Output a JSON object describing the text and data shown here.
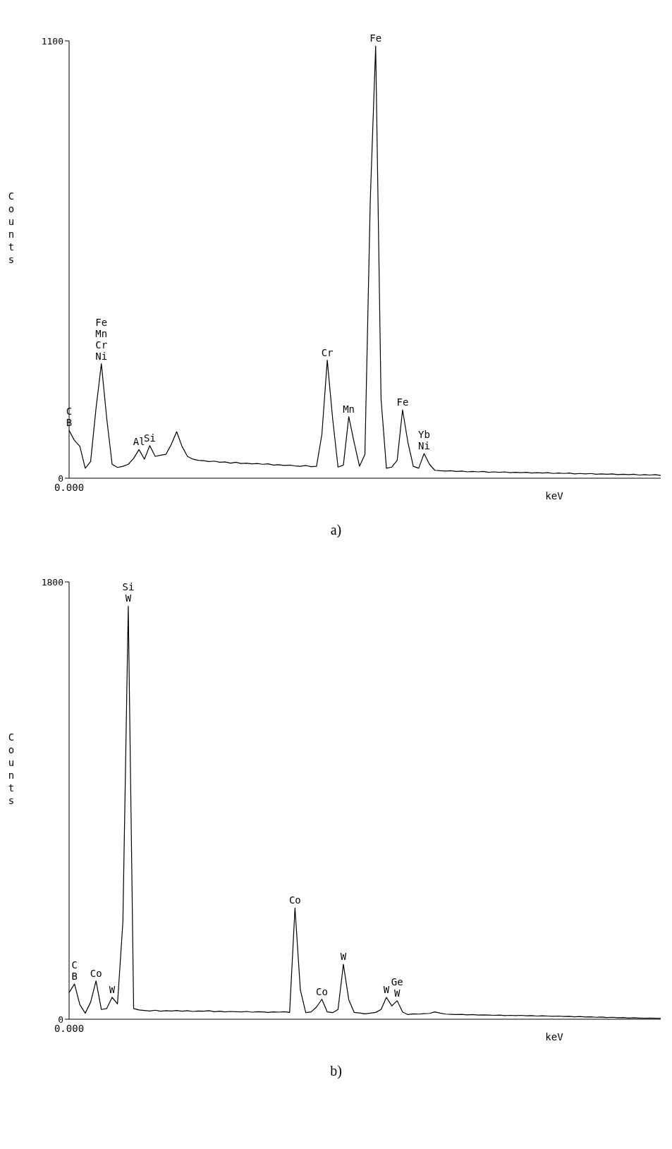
{
  "chart_data": [
    {
      "type": "line",
      "xlabel": "keV",
      "ylabel": "Counts",
      "annotations": [
        "a)"
      ],
      "color": "#000000",
      "ylim": [
        0,
        1100
      ],
      "yticks": [
        0,
        1100
      ],
      "categories": [
        "0.000",
        null,
        null,
        null,
        null,
        null,
        null,
        null,
        null,
        null,
        null,
        null,
        null,
        null,
        null,
        null,
        null,
        null,
        null,
        null,
        null,
        null,
        null,
        null,
        null,
        null,
        null,
        null,
        null,
        null,
        null,
        null,
        null,
        null,
        null,
        null,
        null,
        null,
        null,
        null,
        null,
        null,
        null,
        null,
        null,
        null,
        null,
        null,
        null,
        null,
        null,
        null,
        null,
        null,
        null,
        null,
        null,
        null,
        null,
        null,
        null,
        null,
        null,
        null,
        null,
        null,
        null,
        null,
        null,
        null,
        null,
        null,
        null,
        null,
        null,
        null,
        null,
        null,
        null,
        null,
        null,
        null,
        null,
        null,
        null,
        null,
        null,
        null,
        null,
        null,
        null,
        null,
        null,
        null,
        null,
        null,
        null,
        null,
        null,
        null,
        null,
        null,
        null,
        null,
        null,
        null,
        null,
        null,
        null,
        null,
        null
      ],
      "values": [
        120,
        95,
        80,
        25,
        42,
        175,
        288,
        150,
        35,
        27,
        30,
        35,
        50,
        72,
        48,
        82,
        55,
        58,
        60,
        85,
        117,
        80,
        55,
        48,
        45,
        44,
        42,
        43,
        40,
        41,
        38,
        40,
        37,
        38,
        36,
        37,
        35,
        36,
        33,
        34,
        32,
        33,
        31,
        30,
        32,
        29,
        30,
        110,
        297,
        150,
        28,
        33,
        155,
        90,
        30,
        60,
        700,
        1087,
        200,
        25,
        28,
        45,
        172,
        90,
        30,
        25,
        62,
        35,
        20,
        19,
        18,
        19,
        17,
        18,
        16,
        17,
        16,
        17,
        15,
        16,
        15,
        16,
        14,
        15,
        14,
        15,
        13,
        14,
        13,
        14,
        12,
        13,
        12,
        13,
        11,
        12,
        11,
        12,
        10,
        11,
        10,
        11,
        9,
        10,
        9,
        10,
        8,
        9,
        8,
        9,
        7
      ],
      "value_labels": [
        "C\nB",
        null,
        null,
        null,
        null,
        null,
        "Fe\nMn\nCr\nNi",
        null,
        null,
        null,
        null,
        null,
        null,
        "Al",
        null,
        "Si",
        null,
        null,
        null,
        null,
        null,
        null,
        null,
        null,
        null,
        null,
        null,
        null,
        null,
        null,
        null,
        null,
        null,
        null,
        null,
        null,
        null,
        null,
        null,
        null,
        null,
        null,
        null,
        null,
        null,
        null,
        null,
        null,
        "Cr",
        null,
        null,
        null,
        "Mn",
        null,
        null,
        null,
        null,
        "Fe",
        null,
        null,
        null,
        null,
        "Fe",
        null,
        null,
        null,
        "Yb\nNi",
        null,
        null,
        null,
        null,
        null,
        null,
        null,
        null,
        null,
        null,
        null,
        null,
        null,
        null,
        null,
        null,
        null,
        null,
        null,
        null,
        null,
        null,
        null,
        null,
        null,
        null,
        null,
        null,
        null,
        null,
        null,
        null,
        null,
        null,
        null,
        null,
        null,
        null,
        null,
        null,
        null,
        null,
        null,
        null
      ]
    },
    {
      "type": "line",
      "xlabel": "keV",
      "ylabel": "Counts",
      "annotations": [
        "b)"
      ],
      "color": "#000000",
      "ylim": [
        0,
        1800
      ],
      "yticks": [
        0,
        1800
      ],
      "categories": [
        "0.000",
        null,
        null,
        null,
        null,
        null,
        null,
        null,
        null,
        null,
        null,
        null,
        null,
        null,
        null,
        null,
        null,
        null,
        null,
        null,
        null,
        null,
        null,
        null,
        null,
        null,
        null,
        null,
        null,
        null,
        null,
        null,
        null,
        null,
        null,
        null,
        null,
        null,
        null,
        null,
        null,
        null,
        null,
        null,
        null,
        null,
        null,
        null,
        null,
        null,
        null,
        null,
        null,
        null,
        null,
        null,
        null,
        null,
        null,
        null,
        null,
        null,
        null,
        null,
        null,
        null,
        null,
        null,
        null,
        null,
        null,
        null,
        null,
        null,
        null,
        null,
        null,
        null,
        null,
        null,
        null,
        null,
        null,
        null,
        null,
        null,
        null,
        null,
        null,
        null,
        null,
        null,
        null,
        null,
        null,
        null,
        null,
        null,
        null,
        null,
        null,
        null,
        null,
        null,
        null,
        null,
        null,
        null,
        null,
        null,
        null
      ],
      "values": [
        110,
        145,
        60,
        25,
        70,
        158,
        40,
        44,
        90,
        63,
        400,
        1700,
        44,
        38,
        36,
        34,
        37,
        33,
        35,
        34,
        36,
        33,
        35,
        32,
        34,
        33,
        35,
        31,
        33,
        30,
        32,
        31,
        30,
        32,
        29,
        31,
        30,
        28,
        30,
        29,
        31,
        28,
        458,
        120,
        27,
        30,
        50,
        82,
        30,
        27,
        40,
        226,
        80,
        28,
        26,
        22,
        25,
        28,
        40,
        90,
        55,
        76,
        30,
        19,
        22,
        21,
        23,
        24,
        30,
        25,
        21,
        20,
        19,
        20,
        18,
        19,
        17,
        18,
        17,
        16,
        17,
        15,
        16,
        15,
        16,
        14,
        15,
        13,
        14,
        13,
        12,
        13,
        11,
        12,
        10,
        11,
        9,
        10,
        8,
        9,
        7,
        8,
        6,
        7,
        5,
        6,
        5,
        4,
        5,
        4,
        3
      ],
      "value_labels": [
        null,
        "C\nB",
        null,
        null,
        null,
        "Co",
        null,
        null,
        "W",
        null,
        null,
        "Si\nW",
        null,
        null,
        null,
        null,
        null,
        null,
        null,
        null,
        null,
        null,
        null,
        null,
        null,
        null,
        null,
        null,
        null,
        null,
        null,
        null,
        null,
        null,
        null,
        null,
        null,
        null,
        null,
        null,
        null,
        null,
        "Co",
        null,
        null,
        null,
        null,
        "Co",
        null,
        null,
        null,
        "W",
        null,
        null,
        null,
        null,
        null,
        null,
        null,
        "W",
        null,
        "Ge\nW",
        null,
        null,
        null,
        null,
        null,
        null,
        null,
        null,
        null,
        null,
        null,
        null,
        null,
        null,
        null,
        null,
        null,
        null,
        null,
        null,
        null,
        null,
        null,
        null,
        null,
        null,
        null,
        null,
        null,
        null,
        null,
        null,
        null,
        null,
        null,
        null,
        null,
        null,
        null,
        null,
        null,
        null,
        null,
        null,
        null,
        null,
        null,
        null,
        null
      ]
    }
  ]
}
